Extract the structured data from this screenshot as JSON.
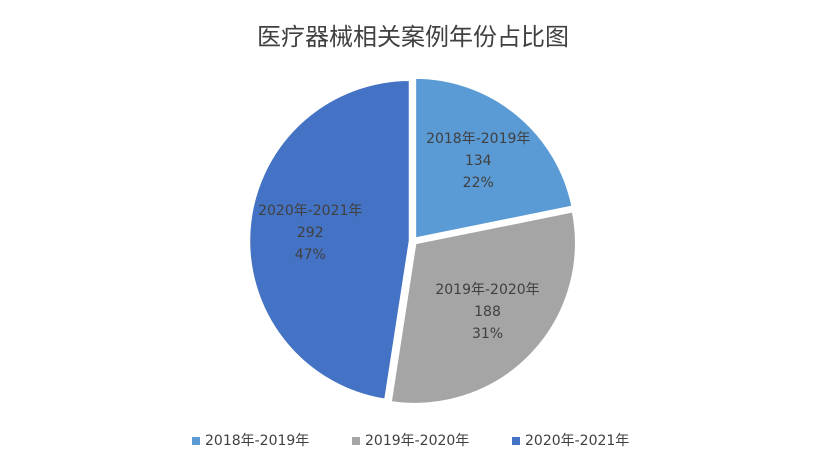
{
  "chart_data": {
    "type": "pie",
    "title": "医疗器械相关案例年份占比图",
    "categories": [
      "2018年-2019年",
      "2019年-2020年",
      "2020年-2021年"
    ],
    "values": [
      134,
      188,
      292
    ],
    "percent_labels": [
      "22%",
      "31%",
      "47%"
    ],
    "colors": [
      "#5b9bd5",
      "#a5a5a5",
      "#4472c4"
    ],
    "legend": "bottom"
  }
}
